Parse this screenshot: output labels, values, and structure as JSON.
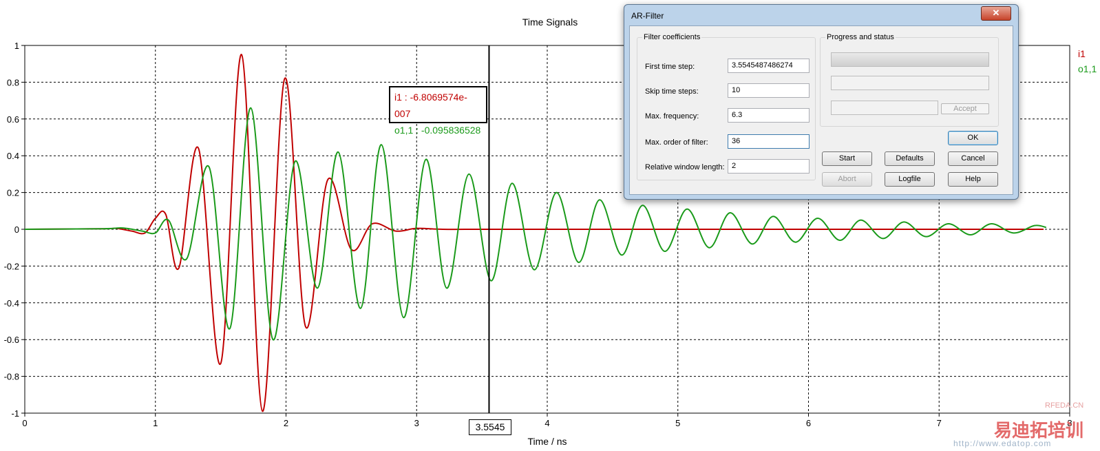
{
  "chart_data": {
    "type": "line",
    "title": "Time Signals",
    "xlabel": "Time / ns",
    "ylabel": "",
    "xlim": [
      0,
      8
    ],
    "ylim": [
      -1,
      1
    ],
    "x_ticks": [
      "0",
      "1",
      "2",
      "3",
      "4",
      "5",
      "6",
      "7",
      "8"
    ],
    "y_ticks": [
      "1",
      "0.8",
      "0.6",
      "0.4",
      "0.2",
      "0",
      "-0.2",
      "-0.4",
      "-0.6",
      "-0.8",
      "-1"
    ],
    "grid": true,
    "legend_position": "right",
    "series": [
      {
        "name": "i1",
        "color": "#c00000",
        "x": [
          0,
          0.6,
          0.7,
          0.82,
          0.92,
          1.0,
          1.08,
          1.18,
          1.33,
          1.5,
          1.66,
          1.82,
          1.99,
          2.15,
          2.32,
          2.5,
          2.66,
          2.84,
          3.0,
          3.2,
          3.5,
          4.0,
          5.0,
          6.0,
          7.0,
          7.8
        ],
        "y": [
          0,
          0.003,
          0.005,
          -0.01,
          -0.02,
          0.06,
          0.08,
          -0.21,
          0.44,
          -0.73,
          0.95,
          -0.99,
          0.82,
          -0.53,
          0.27,
          -0.11,
          0.03,
          -0.01,
          0.005,
          0,
          0,
          0,
          0,
          0,
          0,
          0
        ]
      },
      {
        "name": "o1,1",
        "color": "#1a9a1a",
        "x": [
          0,
          0.6,
          0.75,
          0.9,
          1.0,
          1.1,
          1.24,
          1.41,
          1.57,
          1.73,
          1.9,
          2.07,
          2.24,
          2.4,
          2.57,
          2.73,
          2.9,
          3.07,
          3.23,
          3.4,
          3.57,
          3.73,
          3.9,
          4.07,
          4.24,
          4.4,
          4.57,
          4.73,
          4.9,
          5.07,
          5.24,
          5.4,
          5.57,
          5.73,
          5.9,
          6.07,
          6.24,
          6.4,
          6.57,
          6.73,
          6.9,
          7.07,
          7.24,
          7.4,
          7.57,
          7.73,
          7.82
        ],
        "y": [
          0,
          0.003,
          0.007,
          -0.01,
          -0.02,
          0.05,
          -0.16,
          0.34,
          -0.54,
          0.66,
          -0.6,
          0.37,
          -0.32,
          0.42,
          -0.43,
          0.46,
          -0.48,
          0.38,
          -0.32,
          0.3,
          -0.28,
          0.25,
          -0.22,
          0.2,
          -0.18,
          0.16,
          -0.14,
          0.13,
          -0.12,
          0.11,
          -0.1,
          0.09,
          -0.08,
          0.07,
          -0.07,
          0.06,
          -0.06,
          0.05,
          -0.05,
          0.04,
          -0.04,
          0.03,
          -0.03,
          0.03,
          -0.02,
          0.02,
          0.01
        ]
      }
    ],
    "cursor_x": 3.5545,
    "cursor_label": "3.5545",
    "cursor_readout": [
      {
        "text": "i1 : -6.8069574e-007",
        "color": "#c00000"
      },
      {
        "text": "o1,1 : -0.095836528",
        "color": "#1a9a1a"
      }
    ]
  },
  "dialog": {
    "title": "AR-Filter",
    "close_glyph": "✕",
    "filter_group_label": "Filter coefficients",
    "progress_group_label": "Progress and status",
    "fields": [
      {
        "label": "First time step:",
        "value": "3.5545487486274"
      },
      {
        "label": "Skip time steps:",
        "value": "10"
      },
      {
        "label": "Max. frequency:",
        "value": "6.3"
      },
      {
        "label": "Max. order of filter:",
        "value": "36"
      },
      {
        "label": "Relative window length:",
        "value": "2"
      }
    ],
    "buttons": {
      "accept": "Accept",
      "ok": "OK",
      "start": "Start",
      "defaults": "Defaults",
      "cancel": "Cancel",
      "abort": "Abort",
      "logfile": "Logfile",
      "help": "Help"
    }
  },
  "watermark": {
    "brand": "RFEDA.CN",
    "cn_text": "易迪拓培训",
    "url": "http://www.edatop.com"
  }
}
